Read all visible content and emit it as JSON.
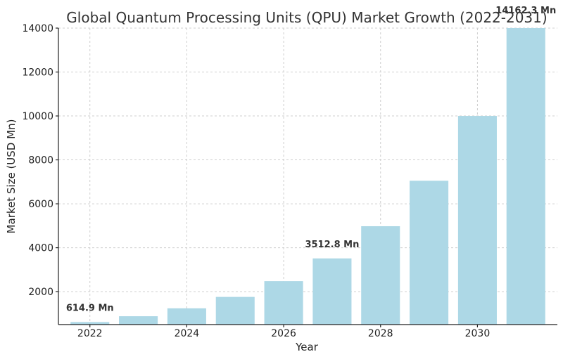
{
  "chart_data": {
    "type": "bar",
    "title": "Global Quantum Processing Units (QPU) Market Growth (2022-2031)",
    "xlabel": "Year",
    "ylabel": "Market Size (USD Mn)",
    "x": [
      2022,
      2023,
      2024,
      2025,
      2026,
      2027,
      2028,
      2029,
      2030,
      2031
    ],
    "values": [
      614.9,
      880,
      1240,
      1760,
      2480,
      3512.8,
      4980,
      7050,
      10000,
      14162.3
    ],
    "xticks": [
      "2022",
      "2024",
      "2026",
      "2028",
      "2030"
    ],
    "yticks": [
      "2000",
      "4000",
      "6000",
      "8000",
      "10000",
      "12000",
      "14000"
    ],
    "ylim": [
      500,
      14000
    ],
    "grid": true,
    "bar_color": "#add8e6",
    "annotations": [
      {
        "x": 2022,
        "text": "614.9 Mn"
      },
      {
        "x": 2027,
        "text": "3512.8 Mn"
      },
      {
        "x": 2031,
        "text": "14162.3 Mn"
      }
    ]
  }
}
